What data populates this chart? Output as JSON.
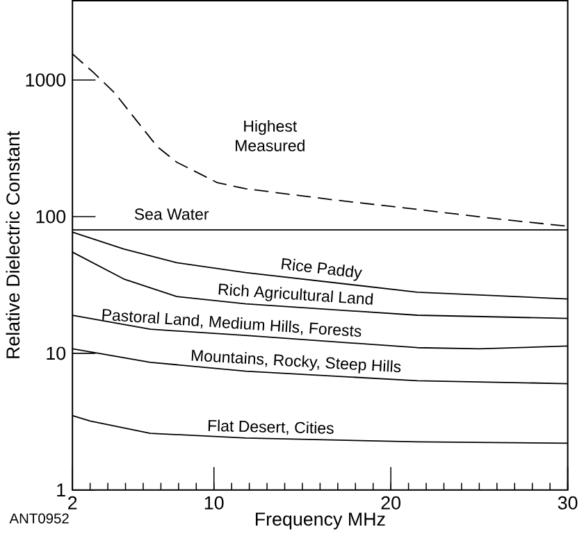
{
  "chart_data": {
    "type": "line",
    "xlabel": "Frequency MHz",
    "ylabel": "Relative Dielectric Constant",
    "log": "y",
    "xlim": [
      2,
      30
    ],
    "ylim": [
      1,
      3800
    ],
    "xticks": [
      2,
      10,
      20,
      30
    ],
    "yticks": [
      1,
      10,
      100,
      1000
    ],
    "grid": false,
    "annotations": [
      "ANT0952"
    ],
    "series": [
      {
        "name": "Highest Measured",
        "color": "#000000",
        "line_style": "dashed",
        "x": [
          2,
          3.2,
          4.4,
          5.7,
          6.8,
          7.9,
          10.2,
          11.8,
          16.7,
          21.5,
          25.8,
          30
        ],
        "values": [
          1550,
          1130,
          800,
          490,
          325,
          250,
          177,
          160,
          133,
          113,
          97,
          85
        ]
      },
      {
        "name": "Sea Water",
        "color": "#000000",
        "x": [
          2,
          30
        ],
        "values": [
          80,
          80
        ]
      },
      {
        "name": "Rice Paddy",
        "color": "#000000",
        "x": [
          2,
          4.9,
          7.9,
          11.8,
          21.5,
          30
        ],
        "values": [
          77,
          58,
          46,
          39,
          28,
          25
        ]
      },
      {
        "name": "Rich Agricultural Land",
        "color": "#000000",
        "x": [
          2,
          4.9,
          7.9,
          11.8,
          21.5,
          30
        ],
        "values": [
          55,
          35,
          26,
          23,
          19,
          18
        ]
      },
      {
        "name": "Pastoral Land, Medium Hills, Forests",
        "color": "#000000",
        "x": [
          2,
          6.4,
          11.8,
          21.5,
          25,
          30
        ],
        "values": [
          19,
          15,
          13.5,
          11,
          10.8,
          11.3
        ]
      },
      {
        "name": "Mountains, Rocky, Steep Hills",
        "color": "#000000",
        "x": [
          2,
          6.4,
          11.8,
          21.5,
          30
        ],
        "values": [
          10.8,
          8.6,
          7.4,
          6.3,
          6
        ]
      },
      {
        "name": "Flat Desert, Cities",
        "color": "#000000",
        "x": [
          2,
          3,
          6.4,
          11.8,
          21.5,
          30
        ],
        "values": [
          3.5,
          3.2,
          2.6,
          2.4,
          2.25,
          2.2
        ]
      }
    ]
  }
}
